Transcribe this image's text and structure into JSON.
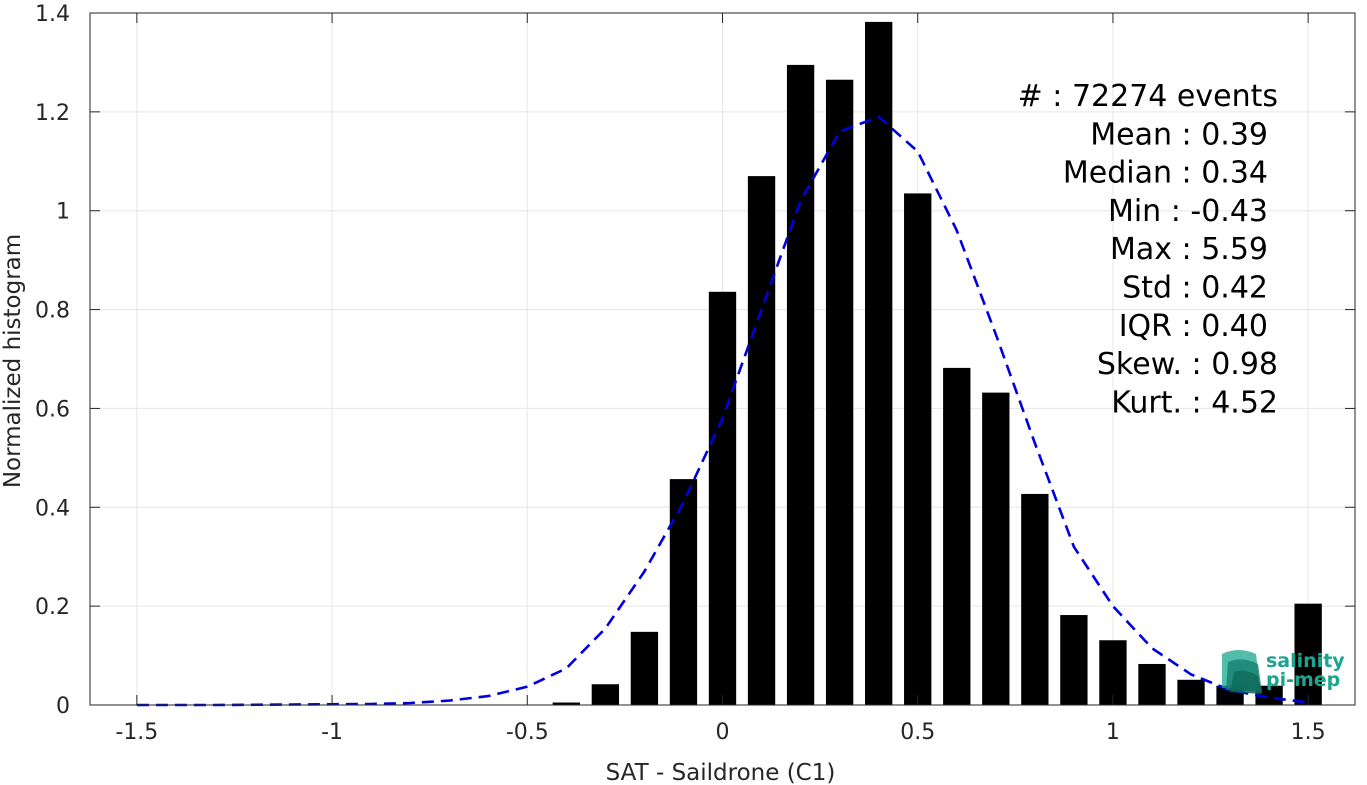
{
  "chart_data": {
    "type": "bar",
    "title": "",
    "xlabel": "SAT - Saildrone (C1)",
    "ylabel": "Normalized histogram",
    "xlim": [
      -1.62,
      1.62
    ],
    "ylim": [
      0,
      1.4
    ],
    "grid": true,
    "xticks": [
      -1.5,
      -1,
      -0.5,
      0,
      0.5,
      1,
      1.5
    ],
    "xtick_labels": [
      "-1.5",
      "-1",
      "-0.5",
      "0",
      "0.5",
      "1",
      "1.5"
    ],
    "yticks": [
      0,
      0.2,
      0.4,
      0.6,
      0.8,
      1,
      1.2,
      1.4
    ],
    "ytick_labels": [
      "0",
      "0.2",
      "0.4",
      "0.6",
      "0.8",
      "1",
      "1.2",
      "1.4"
    ],
    "bar_width": 0.07,
    "bars": {
      "x": [
        -0.4,
        -0.3,
        -0.2,
        -0.1,
        0.0,
        0.1,
        0.2,
        0.3,
        0.4,
        0.5,
        0.6,
        0.7,
        0.8,
        0.9,
        1.0,
        1.1,
        1.2,
        1.3,
        1.4,
        1.5
      ],
      "values": [
        0.005,
        0.042,
        0.148,
        0.457,
        0.836,
        1.07,
        1.295,
        1.265,
        1.382,
        1.035,
        0.682,
        0.632,
        0.427,
        0.182,
        0.131,
        0.083,
        0.051,
        0.039,
        0.039,
        0.205
      ],
      "color": "#000000"
    },
    "fit_curve": {
      "style": "dashed",
      "color": "#0000dd",
      "x": [
        -1.5,
        -1.3,
        -1.1,
        -0.9,
        -0.8,
        -0.7,
        -0.6,
        -0.5,
        -0.4,
        -0.3,
        -0.2,
        -0.1,
        0.0,
        0.1,
        0.2,
        0.3,
        0.4,
        0.5,
        0.6,
        0.7,
        0.8,
        0.9,
        1.0,
        1.1,
        1.2,
        1.3,
        1.4,
        1.5
      ],
      "y": [
        0.0,
        0.0,
        0.001,
        0.002,
        0.004,
        0.009,
        0.018,
        0.037,
        0.074,
        0.155,
        0.27,
        0.41,
        0.58,
        0.8,
        1.02,
        1.16,
        1.19,
        1.12,
        0.96,
        0.75,
        0.53,
        0.32,
        0.2,
        0.115,
        0.062,
        0.03,
        0.015,
        0.005
      ]
    },
    "annotations": [
      "#  : 72274 events",
      "Mean : 0.39",
      "Median : 0.34",
      "Min : -0.43",
      "Max : 5.59",
      "Std : 0.42",
      "IQR : 0.40",
      "Skew. : 0.98",
      "Kurt. : 4.52"
    ]
  },
  "logo": {
    "line1": "salinity",
    "line2": "pi-mep",
    "color": "#1aa58e"
  }
}
